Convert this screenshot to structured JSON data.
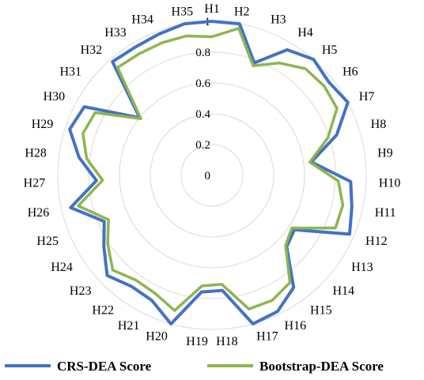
{
  "chart_data": {
    "type": "radar",
    "categories": [
      "H1",
      "H2",
      "H3",
      "H4",
      "H5",
      "H6",
      "H7",
      "H8",
      "H9",
      "H10",
      "H11",
      "H12",
      "H13",
      "H14",
      "H15",
      "H16",
      "H17",
      "H18",
      "H19",
      "H20",
      "H21",
      "H22",
      "H23",
      "H24",
      "H25",
      "H26",
      "H27",
      "H28",
      "H29",
      "H30",
      "H31",
      "H32",
      "H33",
      "H34",
      "H35"
    ],
    "r_ticks": [
      "0",
      "0.2",
      "0.4",
      "0.6",
      "0.8",
      "1"
    ],
    "rlim": [
      0,
      1
    ],
    "grid": true,
    "legend_position": "bottom",
    "series": [
      {
        "name": "CRS-DEA Score",
        "color": "#4472C4",
        "values": [
          1.0,
          1.0,
          0.78,
          0.95,
          1.0,
          0.97,
          1.0,
          0.85,
          0.65,
          0.9,
          0.93,
          0.97,
          0.64,
          0.67,
          0.9,
          0.98,
          1.0,
          0.75,
          0.76,
          1.0,
          0.9,
          0.89,
          0.94,
          0.84,
          0.76,
          0.94,
          0.75,
          0.87,
          0.97,
          0.94,
          0.6,
          0.98,
          0.97,
          0.98,
          1.0
        ]
      },
      {
        "name": "Bootstrap-DEA Score",
        "color": "#8DB650",
        "values": [
          0.9,
          0.97,
          0.76,
          0.85,
          0.92,
          0.93,
          0.92,
          0.79,
          0.64,
          0.82,
          0.87,
          0.87,
          0.62,
          0.66,
          0.86,
          0.9,
          0.9,
          0.71,
          0.72,
          0.91,
          0.85,
          0.84,
          0.89,
          0.81,
          0.73,
          0.89,
          0.71,
          0.82,
          0.88,
          0.86,
          0.59,
          0.93,
          0.92,
          0.92,
          0.92
        ]
      }
    ]
  }
}
